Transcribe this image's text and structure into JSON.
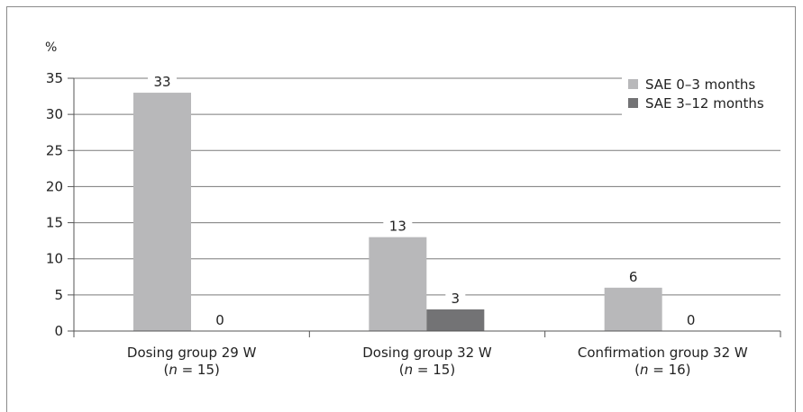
{
  "chart_data": {
    "type": "bar",
    "ylabel": "%",
    "ylim": [
      0,
      35
    ],
    "yticks": [
      0,
      5,
      10,
      15,
      20,
      25,
      30,
      35
    ],
    "grid": true,
    "legend_position": "top-right",
    "categories": [
      {
        "line1": "Dosing group 29 W",
        "line2_pre": "(",
        "line2_n": "n",
        "line2_post": " = 15)"
      },
      {
        "line1": "Dosing group 32 W",
        "line2_pre": "(",
        "line2_n": "n",
        "line2_post": " = 15)"
      },
      {
        "line1": "Confirmation group 32 W",
        "line2_pre": "(",
        "line2_n": "n",
        "line2_post": " = 16)"
      }
    ],
    "series": [
      {
        "name": "SAE 0–3 months",
        "color": "#b8b8ba",
        "values": [
          33,
          13,
          6
        ]
      },
      {
        "name": "SAE 3–12 months",
        "color": "#737375",
        "values": [
          0,
          3,
          0
        ]
      }
    ]
  }
}
